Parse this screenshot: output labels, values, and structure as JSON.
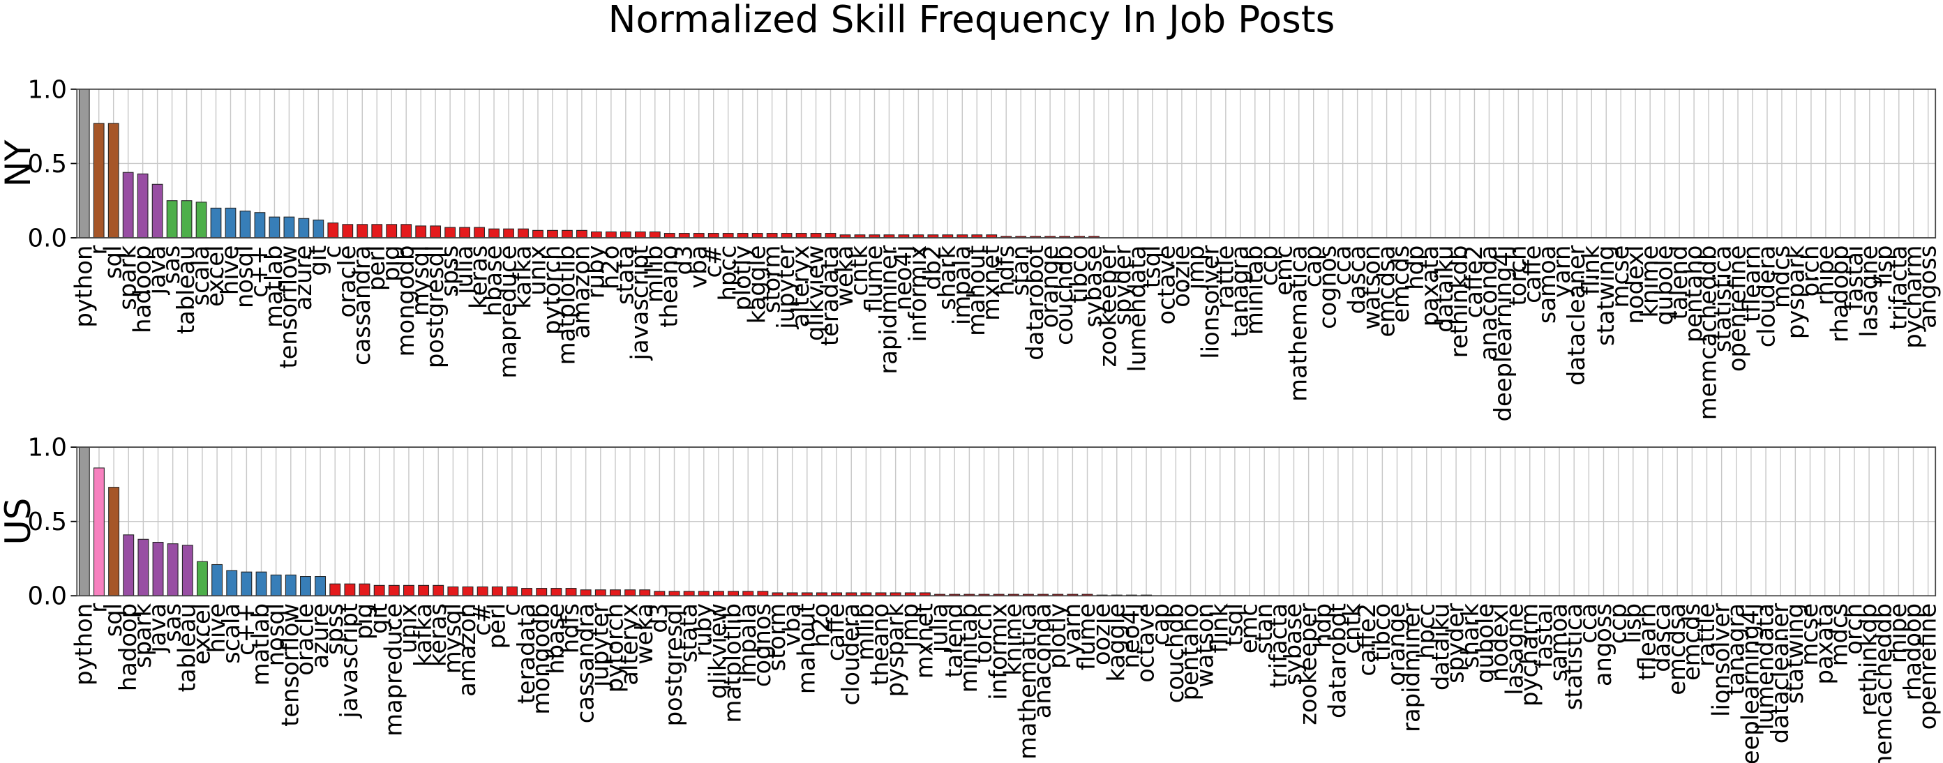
{
  "title": "Normalized Skill Frequency In Job Posts",
  "chart_data": [
    {
      "type": "bar",
      "ylabel": "NY",
      "ylim": [
        0,
        1.0
      ],
      "yticks": [
        {
          "value": 0,
          "label": "0.0"
        },
        {
          "value": 0.5,
          "label": "0.5"
        },
        {
          "value": 1.0,
          "label": "1.0"
        }
      ],
      "grid": true,
      "categories": [
        "python",
        "r",
        "sql",
        "spark",
        "hadoop",
        "java",
        "sas",
        "tableau",
        "scala",
        "excel",
        "hive",
        "nosql",
        "c++",
        "matlab",
        "tensorflow",
        "azure",
        "git",
        "c",
        "oracle",
        "cassandra",
        "perl",
        "pig",
        "mongodb",
        "mysql",
        "postgresql",
        "spss",
        "julia",
        "keras",
        "hbase",
        "mapreduce",
        "kafka",
        "unix",
        "pytorch",
        "matplotlib",
        "amazon",
        "ruby",
        "h2o",
        "stata",
        "javascript",
        "mllib",
        "theano",
        "d3",
        "vba",
        "c#",
        "hpcc",
        "plotly",
        "kaggle",
        "storm",
        "jupyter",
        "alteryx",
        "qlikview",
        "teradata",
        "weka",
        "cntk",
        "flume",
        "rapidminer",
        "neo4j",
        "informix",
        "db2",
        "shark",
        "impala",
        "mahout",
        "mxnet",
        "hdfs",
        "stan",
        "datarobot",
        "orange",
        "couchdb",
        "tibco",
        "sybase",
        "zookeeper",
        "spyder",
        "lumendata",
        "tsql",
        "octave",
        "oozie",
        "jmp",
        "lionsolver",
        "rattle",
        "tanagra",
        "minitab",
        "ccp",
        "emc",
        "mathematica",
        "cap",
        "cognos",
        "cca",
        "dasca",
        "watson",
        "emcdsa",
        "emcds",
        "hdp",
        "paxata",
        "dataiku",
        "rethinkdb",
        "caffe2",
        "anaconda",
        "deeplearning4j",
        "torch",
        "caffe",
        "samoa",
        "yarn",
        "datacleaner",
        "flink",
        "statwing",
        "mcse",
        "nodexl",
        "knime",
        "qubole",
        "talend",
        "pentaho",
        "memcacheddb",
        "statistica",
        "openrefine",
        "tflearn",
        "cloudera",
        "mdcs",
        "pyspark",
        "orch",
        "rhipe",
        "rhadoop",
        "fastai",
        "lasagne",
        "lisp",
        "trifacta",
        "pycharm",
        "angoss"
      ],
      "values": [
        1.0,
        0.77,
        0.77,
        0.44,
        0.43,
        0.36,
        0.25,
        0.25,
        0.24,
        0.2,
        0.2,
        0.18,
        0.17,
        0.14,
        0.14,
        0.13,
        0.12,
        0.1,
        0.09,
        0.09,
        0.09,
        0.09,
        0.09,
        0.08,
        0.08,
        0.07,
        0.07,
        0.07,
        0.06,
        0.06,
        0.06,
        0.05,
        0.05,
        0.05,
        0.05,
        0.04,
        0.04,
        0.04,
        0.04,
        0.04,
        0.03,
        0.03,
        0.03,
        0.03,
        0.03,
        0.03,
        0.03,
        0.03,
        0.03,
        0.03,
        0.03,
        0.03,
        0.02,
        0.02,
        0.02,
        0.02,
        0.02,
        0.02,
        0.02,
        0.02,
        0.02,
        0.02,
        0.02,
        0.01,
        0.01,
        0.01,
        0.01,
        0.01,
        0.01,
        0.01,
        0,
        0,
        0,
        0,
        0,
        0,
        0,
        0,
        0,
        0,
        0,
        0,
        0,
        0,
        0,
        0,
        0,
        0,
        0,
        0,
        0,
        0,
        0,
        0,
        0,
        0,
        0,
        0,
        0,
        0,
        0,
        0,
        0,
        0,
        0,
        0,
        0,
        0,
        0,
        0,
        0,
        0,
        0,
        0,
        0,
        0,
        0,
        0,
        0,
        0,
        0,
        0,
        0,
        0,
        0,
        0,
        0
      ],
      "colors": [
        "#999999",
        "#a65628",
        "#a65628",
        "#984ea3",
        "#984ea3",
        "#984ea3",
        "#4daf4a",
        "#4daf4a",
        "#4daf4a",
        "#377eb8",
        "#377eb8",
        "#377eb8",
        "#377eb8",
        "#377eb8",
        "#377eb8",
        "#377eb8",
        "#377eb8",
        "#e41a1c"
      ]
    },
    {
      "type": "bar",
      "ylabel": "US",
      "ylim": [
        0,
        1.0
      ],
      "yticks": [
        {
          "value": 0,
          "label": "0.0"
        },
        {
          "value": 0.5,
          "label": "0.5"
        },
        {
          "value": 1.0,
          "label": "1.0"
        }
      ],
      "grid": true,
      "categories": [
        "python",
        "r",
        "sql",
        "hadoop",
        "spark",
        "java",
        "sas",
        "tableau",
        "excel",
        "hive",
        "scala",
        "c++",
        "matlab",
        "nosql",
        "tensorflow",
        "oracle",
        "azure",
        "spss",
        "javascript",
        "pig",
        "git",
        "mapreduce",
        "unix",
        "kafka",
        "keras",
        "mysql",
        "amazon",
        "c#",
        "perl",
        "c",
        "teradata",
        "mongodb",
        "hbase",
        "hdfs",
        "cassandra",
        "jupyter",
        "pytorch",
        "alteryx",
        "weka",
        "d3",
        "postgresql",
        "stata",
        "ruby",
        "qlikview",
        "matplotlib",
        "impala",
        "cognos",
        "storm",
        "vba",
        "mahout",
        "h2o",
        "caffe",
        "cloudera",
        "mllib",
        "theano",
        "pyspark",
        "jmp",
        "mxnet",
        "julia",
        "talend",
        "minitab",
        "torch",
        "informix",
        "knime",
        "mathematica",
        "anaconda",
        "plotly",
        "yarn",
        "flume",
        "oozie",
        "kaggle",
        "neo4j",
        "octave",
        "cap",
        "couchdb",
        "pentaho",
        "watson",
        "flink",
        "tsql",
        "emc",
        "stan",
        "trifacta",
        "sybase",
        "zookeeper",
        "hdp",
        "datarobot",
        "cntk",
        "caffe2",
        "tibco",
        "orange",
        "rapidminer",
        "hpcc",
        "dataiku",
        "spyder",
        "shark",
        "qubole",
        "nodexl",
        "lasagne",
        "pycharm",
        "fastai",
        "samoa",
        "statistica",
        "cca",
        "angoss",
        "ccp",
        "lisp",
        "tflearn",
        "dasca",
        "emcdsa",
        "emcds",
        "rattle",
        "lionsolver",
        "tanagra",
        "deeplearning4j",
        "lumendata",
        "datacleaner",
        "statwing",
        "mcse",
        "paxata",
        "mdcs",
        "orch",
        "rethinkdb",
        "memcacheddb",
        "rhipe",
        "rhadoop",
        "openrefine"
      ],
      "values": [
        1.0,
        0.86,
        0.73,
        0.41,
        0.38,
        0.36,
        0.35,
        0.34,
        0.23,
        0.21,
        0.17,
        0.16,
        0.16,
        0.14,
        0.14,
        0.13,
        0.13,
        0.08,
        0.08,
        0.08,
        0.07,
        0.07,
        0.07,
        0.07,
        0.07,
        0.06,
        0.06,
        0.06,
        0.06,
        0.06,
        0.05,
        0.05,
        0.05,
        0.05,
        0.04,
        0.04,
        0.04,
        0.04,
        0.04,
        0.03,
        0.03,
        0.03,
        0.03,
        0.03,
        0.03,
        0.03,
        0.03,
        0.02,
        0.02,
        0.02,
        0.02,
        0.02,
        0.02,
        0.02,
        0.02,
        0.02,
        0.02,
        0.02,
        0.01,
        0.01,
        0.01,
        0.01,
        0.01,
        0.01,
        0.01,
        0.01,
        0.01,
        0.01,
        0.01,
        0.005,
        0.005,
        0.005,
        0.005,
        0,
        0,
        0,
        0,
        0,
        0,
        0,
        0,
        0,
        0,
        0,
        0,
        0,
        0,
        0,
        0,
        0,
        0,
        0,
        0,
        0,
        0,
        0,
        0,
        0,
        0,
        0,
        0,
        0,
        0,
        0,
        0,
        0,
        0,
        0,
        0,
        0,
        0,
        0,
        0,
        0,
        0,
        0,
        0,
        0,
        0,
        0,
        0,
        0,
        0,
        0,
        0,
        0
      ],
      "colors": [
        "#999999",
        "#f781bf",
        "#a65628",
        "#984ea3",
        "#984ea3",
        "#984ea3",
        "#984ea3",
        "#984ea3",
        "#4daf4a",
        "#377eb8",
        "#377eb8",
        "#377eb8",
        "#377eb8",
        "#377eb8",
        "#377eb8",
        "#377eb8",
        "#377eb8",
        "#e41a1c"
      ]
    }
  ]
}
